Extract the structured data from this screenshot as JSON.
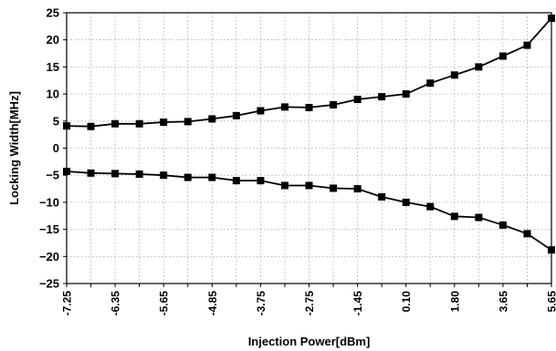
{
  "chart_data": {
    "type": "line",
    "title": "",
    "xlabel": "Injection Power[dBm]",
    "ylabel": "Locking Width[MHz]",
    "ylim": [
      -25,
      25
    ],
    "yticks": [
      25,
      20,
      15,
      10,
      5,
      0,
      -5,
      -10,
      -15,
      -20,
      -25
    ],
    "grid": true,
    "legend": "none",
    "x_tick_labels": [
      "-7.25",
      "-6.35",
      "-5.65",
      "-4.85",
      "-3.75",
      "-2.75",
      "-1.45",
      "0.10",
      "1.80",
      "3.65",
      "5.65"
    ],
    "x_tick_every": 2,
    "x": [
      "-7.25",
      "-6.85",
      "-6.35",
      "-6.00",
      "-5.65",
      "-5.25",
      "-4.85",
      "-4.25",
      "-3.75",
      "-3.25",
      "-2.75",
      "-2.25",
      "-1.45",
      "-0.75",
      "0.10",
      "0.95",
      "1.80",
      "2.70",
      "3.65",
      "4.65",
      "5.65"
    ],
    "series": [
      {
        "values": [
          4.1,
          4.0,
          4.5,
          4.5,
          4.8,
          4.9,
          5.4,
          6.0,
          6.9,
          7.6,
          7.5,
          8.0,
          9.0,
          9.5,
          10.0,
          12.0,
          13.5,
          15.0,
          17.0,
          19.0,
          24.0
        ]
      },
      {
        "values": [
          -4.3,
          -4.6,
          -4.7,
          -4.8,
          -5.0,
          -5.4,
          -5.4,
          -6.0,
          -6.0,
          -6.9,
          -6.9,
          -7.4,
          -7.5,
          -9.0,
          -10.0,
          -10.8,
          -12.6,
          -12.8,
          -14.2,
          -15.8,
          -18.8
        ]
      }
    ],
    "colors": {
      "line": "#000000",
      "grid": "#a8a8a8",
      "frame": "#000000"
    }
  }
}
